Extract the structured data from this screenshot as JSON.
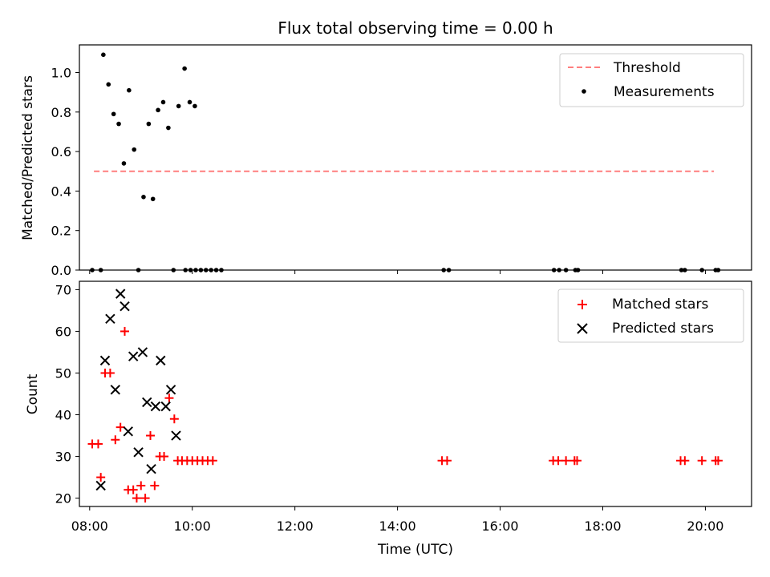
{
  "colors": {
    "threshold": "#ff7f7f",
    "measurements": "#000000",
    "matched": "#ff0000",
    "predicted": "#000000"
  },
  "chart_data": [
    {
      "type": "scatter",
      "title": "Flux total observing time = 0.00 h",
      "xlabel": "",
      "ylabel": "Matched/Predicted stars",
      "xlim": [
        "07:48",
        "20:54"
      ],
      "ylim": [
        0,
        1.14
      ],
      "yticks": [
        "0.0",
        "0.2",
        "0.4",
        "0.6",
        "0.8",
        "1.0"
      ],
      "grid": false,
      "legend": "top-right",
      "series": [
        {
          "name": "Threshold",
          "kind": "dashed-line",
          "points": [
            [
              "08:05",
              0.5
            ],
            [
              "20:10",
              0.5
            ]
          ]
        },
        {
          "name": "Measurements",
          "kind": "dot",
          "points": [
            [
              "08:03",
              0.0
            ],
            [
              "08:13",
              0.0
            ],
            [
              "08:16",
              1.09
            ],
            [
              "08:22",
              0.94
            ],
            [
              "08:28",
              0.79
            ],
            [
              "08:34",
              0.74
            ],
            [
              "08:40",
              0.54
            ],
            [
              "08:46",
              0.91
            ],
            [
              "08:52",
              0.61
            ],
            [
              "08:57",
              0.0
            ],
            [
              "09:03",
              0.37
            ],
            [
              "09:09",
              0.74
            ],
            [
              "09:14",
              0.36
            ],
            [
              "09:20",
              0.81
            ],
            [
              "09:26",
              0.85
            ],
            [
              "09:32",
              0.72
            ],
            [
              "09:38",
              0.0
            ],
            [
              "09:44",
              0.83
            ],
            [
              "09:51",
              1.02
            ],
            [
              "09:57",
              0.85
            ],
            [
              "10:03",
              0.83
            ],
            [
              "09:52",
              0.0
            ],
            [
              "09:58",
              0.0
            ],
            [
              "10:04",
              0.0
            ],
            [
              "10:10",
              0.0
            ],
            [
              "10:16",
              0.0
            ],
            [
              "10:22",
              0.0
            ],
            [
              "10:28",
              0.0
            ],
            [
              "10:34",
              0.0
            ],
            [
              "14:54",
              0.0
            ],
            [
              "15:00",
              0.0
            ],
            [
              "17:03",
              0.0
            ],
            [
              "17:09",
              0.0
            ],
            [
              "17:17",
              0.0
            ],
            [
              "17:28",
              0.0
            ],
            [
              "17:31",
              0.0
            ],
            [
              "19:32",
              0.0
            ],
            [
              "19:36",
              0.0
            ],
            [
              "19:56",
              0.0
            ],
            [
              "20:12",
              0.0
            ],
            [
              "20:15",
              0.0
            ]
          ]
        }
      ]
    },
    {
      "type": "scatter",
      "title": "",
      "xlabel": "Time (UTC)",
      "ylabel": "Count",
      "xlim": [
        "07:48",
        "20:54"
      ],
      "ylim": [
        18,
        72
      ],
      "xticks": [
        "08:00",
        "10:00",
        "12:00",
        "14:00",
        "16:00",
        "18:00",
        "20:00"
      ],
      "yticks": [
        "20",
        "30",
        "40",
        "50",
        "60",
        "70"
      ],
      "grid": false,
      "legend": "top-right",
      "series": [
        {
          "name": "Matched stars",
          "kind": "plus",
          "points": [
            [
              "08:03",
              33
            ],
            [
              "08:10",
              33
            ],
            [
              "08:13",
              25
            ],
            [
              "08:18",
              50
            ],
            [
              "08:24",
              50
            ],
            [
              "08:30",
              34
            ],
            [
              "08:36",
              37
            ],
            [
              "08:41",
              60
            ],
            [
              "08:45",
              22
            ],
            [
              "08:51",
              22
            ],
            [
              "08:55",
              20
            ],
            [
              "09:00",
              23
            ],
            [
              "09:05",
              20
            ],
            [
              "09:11",
              35
            ],
            [
              "09:16",
              23
            ],
            [
              "09:22",
              30
            ],
            [
              "09:27",
              30
            ],
            [
              "09:33",
              44
            ],
            [
              "09:39",
              39
            ],
            [
              "09:43",
              29
            ],
            [
              "09:48",
              29
            ],
            [
              "09:54",
              29
            ],
            [
              "10:00",
              29
            ],
            [
              "10:06",
              29
            ],
            [
              "10:12",
              29
            ],
            [
              "10:18",
              29
            ],
            [
              "10:24",
              29
            ],
            [
              "14:52",
              29
            ],
            [
              "14:58",
              29
            ],
            [
              "17:02",
              29
            ],
            [
              "17:08",
              29
            ],
            [
              "17:17",
              29
            ],
            [
              "17:27",
              29
            ],
            [
              "17:30",
              29
            ],
            [
              "19:31",
              29
            ],
            [
              "19:36",
              29
            ],
            [
              "19:56",
              29
            ],
            [
              "20:12",
              29
            ],
            [
              "20:15",
              29
            ]
          ]
        },
        {
          "name": "Predicted stars",
          "kind": "cross",
          "points": [
            [
              "08:13",
              23
            ],
            [
              "08:18",
              53
            ],
            [
              "08:24",
              63
            ],
            [
              "08:30",
              46
            ],
            [
              "08:36",
              69
            ],
            [
              "08:41",
              66
            ],
            [
              "08:45",
              36
            ],
            [
              "08:51",
              54
            ],
            [
              "08:57",
              31
            ],
            [
              "09:02",
              55
            ],
            [
              "09:07",
              43
            ],
            [
              "09:12",
              27
            ],
            [
              "09:17",
              42
            ],
            [
              "09:23",
              53
            ],
            [
              "09:29",
              42
            ],
            [
              "09:35",
              46
            ],
            [
              "09:41",
              35
            ]
          ]
        }
      ]
    }
  ]
}
